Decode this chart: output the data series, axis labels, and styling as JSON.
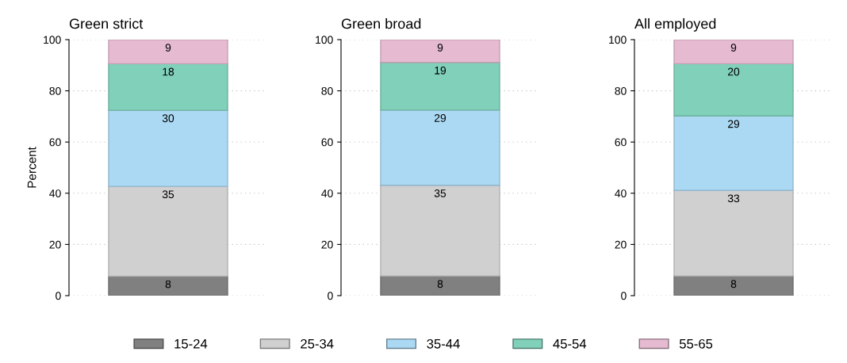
{
  "chart_data": [
    {
      "type": "bar",
      "title": "Green strict",
      "ylabel": "Percent",
      "categories": [
        null
      ],
      "stacked": true,
      "ylim": [
        0,
        100
      ],
      "yticks": [
        0,
        20,
        40,
        60,
        80,
        100
      ],
      "grid": "y",
      "legend": "bottom",
      "tick_labels": "y",
      "series": [
        {
          "name": "15-24",
          "color": "#808080",
          "values": [
            7.6
          ],
          "value_labels": [
            "8"
          ]
        },
        {
          "name": "25-34",
          "color": "#d0d0d0",
          "values": [
            35.1
          ],
          "value_labels": [
            "35"
          ]
        },
        {
          "name": "35-44",
          "color": "#abd9f3",
          "values": [
            29.7
          ],
          "value_labels": [
            "30"
          ]
        },
        {
          "name": "45-54",
          "color": "#81d0b9",
          "values": [
            18.2
          ],
          "value_labels": [
            "18"
          ]
        },
        {
          "name": "55-65",
          "color": "#e6bbd2",
          "values": [
            9.4
          ],
          "value_labels": [
            "9"
          ]
        }
      ]
    },
    {
      "type": "bar",
      "title": "Green broad",
      "categories": [
        null
      ],
      "stacked": true,
      "ylim": [
        0,
        100
      ],
      "yticks": [
        0,
        20,
        40,
        60,
        80,
        100
      ],
      "grid": "y",
      "tick_labels": "y",
      "series": [
        {
          "color": "#808080",
          "values": [
            7.7
          ],
          "value_labels": [
            "8"
          ]
        },
        {
          "color": "#d0d0d0",
          "values": [
            35.4
          ],
          "value_labels": [
            "35"
          ]
        },
        {
          "color": "#abd9f3",
          "values": [
            29.4
          ],
          "value_labels": [
            "29"
          ]
        },
        {
          "color": "#81d0b9",
          "values": [
            18.6
          ],
          "value_labels": [
            "19"
          ]
        },
        {
          "color": "#e6bbd2",
          "values": [
            8.9
          ],
          "value_labels": [
            "9"
          ]
        }
      ]
    },
    {
      "type": "bar",
      "title": "All employed",
      "categories": [
        null
      ],
      "stacked": true,
      "ylim": [
        0,
        100
      ],
      "yticks": [
        0,
        20,
        40,
        60,
        80,
        100
      ],
      "grid": "y",
      "tick_labels": "y",
      "series": [
        {
          "color": "#808080",
          "values": [
            7.7
          ],
          "value_labels": [
            "8"
          ]
        },
        {
          "color": "#d0d0d0",
          "values": [
            33.4
          ],
          "value_labels": [
            "33"
          ]
        },
        {
          "color": "#abd9f3",
          "values": [
            29.1
          ],
          "value_labels": [
            "29"
          ]
        },
        {
          "color": "#81d0b9",
          "values": [
            20.4
          ],
          "value_labels": [
            "20"
          ]
        },
        {
          "color": "#e6bbd2",
          "values": [
            9.4
          ],
          "value_labels": [
            "9"
          ]
        }
      ]
    }
  ]
}
